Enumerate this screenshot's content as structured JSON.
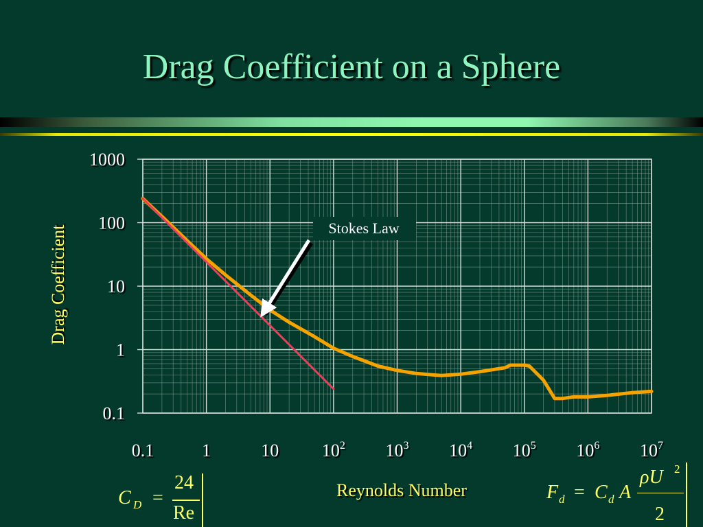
{
  "slide": {
    "title": "Drag Coefficient on a Sphere"
  },
  "chart_data": {
    "type": "line",
    "xscale": "log",
    "yscale": "log",
    "xlim": [
      0.1,
      10000000
    ],
    "ylim": [
      0.1,
      1000
    ],
    "xlabel": "Reynolds Number",
    "ylabel": "Drag Coefficient",
    "grid": true,
    "x_ticks": [
      {
        "value": 0.1,
        "base": "0.1",
        "exp": ""
      },
      {
        "value": 1,
        "base": "1",
        "exp": ""
      },
      {
        "value": 10,
        "base": "10",
        "exp": ""
      },
      {
        "value": 100,
        "base": "10",
        "exp": "2"
      },
      {
        "value": 1000,
        "base": "10",
        "exp": "3"
      },
      {
        "value": 10000,
        "base": "10",
        "exp": "4"
      },
      {
        "value": 100000,
        "base": "10",
        "exp": "5"
      },
      {
        "value": 1000000,
        "base": "10",
        "exp": "6"
      },
      {
        "value": 10000000,
        "base": "10",
        "exp": "7"
      }
    ],
    "y_ticks": [
      {
        "value": 1000,
        "label": "1000"
      },
      {
        "value": 100,
        "label": "100"
      },
      {
        "value": 10,
        "label": "10"
      },
      {
        "value": 1,
        "label": "1"
      },
      {
        "value": 0.1,
        "label": "0.1"
      }
    ],
    "series": [
      {
        "color": "#f5a300",
        "points": [
          [
            0.1,
            240
          ],
          [
            0.2,
            125
          ],
          [
            0.5,
            52
          ],
          [
            1,
            27
          ],
          [
            2,
            15
          ],
          [
            5,
            7.2
          ],
          [
            10,
            4.2
          ],
          [
            20,
            2.7
          ],
          [
            50,
            1.6
          ],
          [
            100,
            1.05
          ],
          [
            200,
            0.78
          ],
          [
            500,
            0.55
          ],
          [
            1000,
            0.47
          ],
          [
            2000,
            0.42
          ],
          [
            5000,
            0.39
          ],
          [
            10000,
            0.41
          ],
          [
            20000,
            0.45
          ],
          [
            50000,
            0.52
          ],
          [
            60000,
            0.57
          ],
          [
            100000,
            0.57
          ],
          [
            120000,
            0.55
          ],
          [
            200000,
            0.33
          ],
          [
            300000,
            0.17
          ],
          [
            400000,
            0.17
          ],
          [
            600000,
            0.18
          ],
          [
            1000000,
            0.18
          ],
          [
            2000000,
            0.19
          ],
          [
            5000000,
            0.21
          ],
          [
            10000000,
            0.22
          ]
        ]
      },
      {
        "color": "#e8405a",
        "points": [
          [
            0.1,
            240
          ],
          [
            100,
            0.24
          ]
        ]
      }
    ],
    "annotations": [
      {
        "text": "Stokes Law",
        "points_to": [
          8,
          3.2
        ]
      }
    ]
  },
  "formulas": {
    "left": {
      "lhs": "C",
      "lhs_sub": "D",
      "eq": "=",
      "num": "24",
      "den": "Re"
    },
    "right": {
      "lhs": "F",
      "lhs_sub": "d",
      "eq": "=",
      "c": "C",
      "c_sub": "d",
      "a": "A",
      "num": "ρU",
      "num_sup": "2",
      "den": "2"
    }
  }
}
